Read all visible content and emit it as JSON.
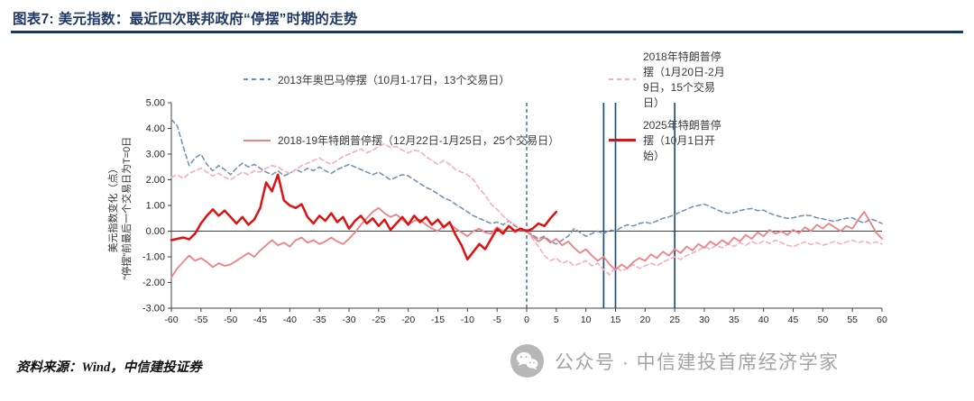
{
  "header": {
    "title": "图表7: 美元指数：最近四次联邦政府“停摆”时期的走势"
  },
  "legend": {
    "items": [
      {
        "label": "2013年奥巴马停摆（10月1-17日，13个交易日）",
        "color": "#6D8EB4",
        "dash": "dashed",
        "weight": 2
      },
      {
        "label": "2018年特朗普停摆（1月20日-2月9日，15个交易日）",
        "color": "#F5AEBC",
        "dash": "dashed",
        "weight": 2
      },
      {
        "label": "2018-19年特朗普停摆（12月22日-1月25日，25个交易日）",
        "color": "#F08083",
        "dash": "solid",
        "weight": 2
      },
      {
        "label": "2025年特朗普停摆（10月1日开始）",
        "color": "#E01111",
        "dash": "solid",
        "weight": 3
      }
    ]
  },
  "footer": {
    "source": "资料来源：Wind，中信建投证券"
  },
  "watermark": {
    "text": "公众号 · 中信建投首席经济学家"
  },
  "chart_data": {
    "type": "line",
    "title": "美元指数：最近四次联邦政府“停摆”时期的走势",
    "xlabel": "",
    "ylabel": "美元指数变化（点）",
    "ylabel2": "“停摆”前最后一个交易日为T=0日",
    "xlim": [
      -60,
      60
    ],
    "ylim": [
      -3,
      5
    ],
    "grid": false,
    "legend_position": "top",
    "y_ticks": [
      5,
      4,
      3,
      2,
      1,
      0,
      -1,
      -2,
      -3
    ],
    "x_ticks": [
      -60,
      -55,
      -50,
      -45,
      -40,
      -35,
      -30,
      -25,
      -20,
      -15,
      -10,
      -5,
      0,
      5,
      10,
      15,
      20,
      25,
      30,
      35,
      40,
      45,
      50,
      55,
      60
    ],
    "event_line_color": "#1F4E79",
    "event_lines": [
      {
        "x": 0,
        "style": "dashed"
      },
      {
        "x": 13,
        "style": "solid"
      },
      {
        "x": 15,
        "style": "solid"
      },
      {
        "x": 25,
        "style": "solid"
      }
    ],
    "x_step": 1,
    "series": [
      {
        "name": "2013年奥巴马停摆（10月1-17日，13个交易日）",
        "color": "#6D8EB4",
        "dash": "dashed",
        "width": 1.5,
        "x_start": -60,
        "values": [
          4.35,
          4.1,
          3.3,
          2.55,
          2.85,
          3.0,
          2.6,
          2.35,
          2.55,
          2.4,
          2.2,
          2.45,
          2.65,
          2.5,
          2.6,
          2.45,
          2.3,
          2.2,
          2.35,
          2.15,
          2.25,
          2.4,
          2.3,
          2.45,
          2.35,
          2.5,
          2.35,
          2.25,
          2.4,
          2.5,
          2.6,
          2.5,
          2.4,
          2.3,
          2.2,
          2.3,
          2.15,
          2.0,
          2.1,
          2.2,
          2.15,
          2.0,
          1.85,
          1.7,
          1.6,
          1.45,
          1.3,
          1.2,
          1.05,
          0.9,
          0.75,
          0.6,
          0.5,
          0.4,
          0.3,
          0.35,
          0.25,
          0.4,
          0.2,
          0.1,
          0.0,
          -0.15,
          -0.3,
          -0.2,
          -0.4,
          -0.5,
          -0.35,
          -0.2,
          0.1,
          -0.05,
          -0.2,
          -0.1,
          0.0,
          -0.1,
          0.05,
          0.0,
          0.15,
          0.25,
          0.2,
          0.3,
          0.35,
          0.3,
          0.4,
          0.5,
          0.55,
          0.65,
          0.75,
          0.85,
          0.95,
          1.0,
          1.05,
          0.95,
          0.85,
          0.75,
          0.7,
          0.72,
          0.8,
          0.85,
          0.88,
          0.8,
          0.82,
          0.7,
          0.62,
          0.55,
          0.5,
          0.52,
          0.58,
          0.62,
          0.6,
          0.52,
          0.48,
          0.42,
          0.38,
          0.45,
          0.5,
          0.52,
          0.4,
          0.32,
          0.48,
          0.4,
          0.3
        ]
      },
      {
        "name": "2018年特朗普停摆（1月20日-2月9日，15个交易日）",
        "color": "#F5AEBC",
        "dash": "dashed",
        "width": 1.6,
        "x_start": -60,
        "values": [
          2.1,
          2.2,
          2.05,
          2.25,
          2.35,
          2.45,
          2.3,
          2.15,
          2.25,
          2.1,
          2.0,
          2.15,
          2.3,
          2.2,
          2.35,
          2.3,
          2.45,
          2.55,
          2.5,
          2.35,
          2.25,
          2.4,
          2.55,
          2.65,
          2.75,
          2.85,
          2.7,
          2.6,
          2.75,
          2.9,
          3.0,
          3.1,
          3.2,
          3.05,
          3.15,
          3.3,
          3.4,
          3.25,
          3.3,
          3.15,
          3.05,
          3.15,
          3.1,
          2.9,
          2.75,
          2.6,
          2.75,
          2.6,
          2.4,
          2.3,
          2.2,
          2.0,
          1.65,
          1.4,
          1.05,
          0.85,
          0.6,
          0.4,
          0.25,
          0.1,
          0.0,
          -0.3,
          -0.6,
          -0.95,
          -1.15,
          -1.05,
          -1.25,
          -1.15,
          -1.35,
          -1.25,
          -1.15,
          -1.35,
          -1.25,
          -1.5,
          -1.7,
          -1.4,
          -1.55,
          -1.45,
          -1.3,
          -1.45,
          -1.35,
          -1.25,
          -1.35,
          -1.2,
          -1.1,
          -1.0,
          -1.1,
          -0.95,
          -0.85,
          -0.75,
          -0.6,
          -0.7,
          -0.55,
          -0.65,
          -0.5,
          -0.6,
          -0.45,
          -0.55,
          -0.4,
          -0.5,
          -0.38,
          -0.48,
          -0.35,
          -0.45,
          -0.55,
          -0.6,
          -0.5,
          -0.42,
          -0.52,
          -0.45,
          -0.55,
          -0.48,
          -0.4,
          -0.5,
          -0.42,
          -0.35,
          -0.45,
          -0.38,
          -0.48,
          -0.42,
          -0.5
        ]
      },
      {
        "name": "2018-19年特朗普停摆（12月22日-1月25日，25个交易日）",
        "color": "#F08083",
        "dash": "solid",
        "width": 1.8,
        "x_start": -60,
        "values": [
          -1.8,
          -1.45,
          -1.2,
          -0.95,
          -1.15,
          -1.05,
          -1.2,
          -1.4,
          -1.25,
          -1.35,
          -1.3,
          -1.15,
          -1.0,
          -0.85,
          -1.0,
          -0.75,
          -0.55,
          -0.35,
          -0.55,
          -0.45,
          -0.6,
          -0.35,
          -0.25,
          -0.45,
          -0.35,
          -0.5,
          -0.4,
          -0.25,
          -0.4,
          -0.5,
          -0.3,
          -0.05,
          0.25,
          0.5,
          0.75,
          0.9,
          0.7,
          0.55,
          0.65,
          0.45,
          0.25,
          0.4,
          0.45,
          0.25,
          0.1,
          0.0,
          0.2,
          0.3,
          0.1,
          -0.05,
          -0.2,
          0.0,
          0.1,
          -0.05,
          -0.1,
          0.15,
          0.0,
          0.2,
          -0.05,
          0.05,
          0.0,
          -0.2,
          -0.4,
          -0.25,
          -0.45,
          -0.3,
          -0.55,
          -0.4,
          -0.65,
          -0.85,
          -0.7,
          -0.95,
          -1.15,
          -1.0,
          -1.3,
          -1.5,
          -1.3,
          -1.45,
          -1.2,
          -1.05,
          -1.15,
          -0.9,
          -1.05,
          -0.8,
          -0.95,
          -0.7,
          -0.85,
          -0.6,
          -0.75,
          -0.5,
          -0.65,
          -0.4,
          -0.55,
          -0.35,
          -0.5,
          -0.25,
          -0.4,
          -0.15,
          -0.3,
          -0.05,
          -0.2,
          0.05,
          -0.1,
          0.0,
          -0.15,
          0.05,
          -0.08,
          0.15,
          0.0,
          0.25,
          0.1,
          0.3,
          0.15,
          0.0,
          0.2,
          0.1,
          0.45,
          0.75,
          0.35,
          -0.05,
          -0.3
        ]
      },
      {
        "name": "2025年特朗普停摆（10月1日开始）",
        "color": "#E01111",
        "dash": "solid",
        "width": 2.5,
        "x_start": -60,
        "values": [
          -0.35,
          -0.3,
          -0.25,
          -0.32,
          -0.1,
          0.3,
          0.6,
          0.85,
          0.6,
          0.8,
          0.55,
          0.3,
          0.55,
          0.25,
          0.45,
          0.9,
          1.9,
          1.55,
          2.2,
          1.2,
          1.0,
          0.9,
          1.05,
          0.55,
          0.3,
          0.6,
          0.4,
          0.7,
          0.35,
          0.55,
          0.1,
          0.4,
          0.6,
          0.3,
          0.5,
          0.2,
          0.45,
          0.05,
          0.3,
          0.55,
          0.25,
          0.6,
          0.35,
          0.55,
          0.25,
          0.45,
          0.15,
          0.35,
          -0.15,
          -0.55,
          -1.1,
          -0.8,
          -0.5,
          -0.7,
          -0.3,
          0.1,
          -0.1,
          0.2,
          0.0,
          0.1,
          0.0,
          0.1,
          0.3,
          0.2,
          0.5,
          0.75
        ]
      }
    ]
  }
}
